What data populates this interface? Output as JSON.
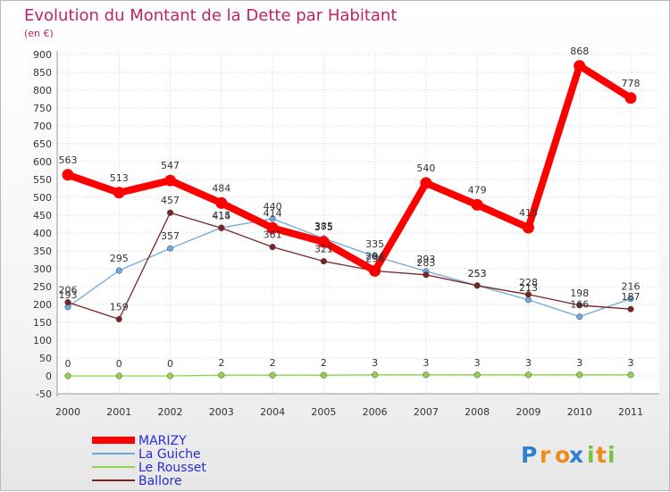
{
  "chart_data": {
    "type": "line",
    "title": "Evolution du Montant de la Dette par Habitant",
    "subtitle": "(en €)",
    "xlabel": "",
    "ylabel": "",
    "ylim": [
      -50,
      900
    ],
    "yticks": [
      -50,
      0,
      50,
      100,
      150,
      200,
      250,
      300,
      350,
      400,
      450,
      500,
      550,
      600,
      650,
      700,
      750,
      800,
      850,
      900
    ],
    "x": [
      "2000",
      "2001",
      "2002",
      "2003",
      "2004",
      "2005",
      "2006",
      "2007",
      "2008",
      "2009",
      "2010",
      "2011"
    ],
    "grid": true,
    "legend_position": "bottom-left",
    "series": [
      {
        "name": "MARIZY",
        "color": "#ff0000",
        "values": [
          563,
          513,
          547,
          484,
          414,
          375,
          294,
          540,
          479,
          415,
          868,
          778
        ]
      },
      {
        "name": "La Guiche",
        "color": "#6fa8dc",
        "values": [
          193,
          295,
          357,
          415,
          440,
          385,
          335,
          293,
          253,
          213,
          166,
          216
        ]
      },
      {
        "name": "Le Rousset",
        "color": "#8fd44b",
        "values": [
          0,
          0,
          0,
          2,
          2,
          2,
          3,
          3,
          3,
          3,
          3,
          3
        ]
      },
      {
        "name": "Ballore",
        "color": "#7a2424",
        "values": [
          206,
          159,
          457,
          414,
          361,
          321,
          294,
          283,
          253,
          228,
          198,
          187
        ]
      }
    ]
  },
  "logo": {
    "text": "Proxiti",
    "letters": [
      "P",
      "r",
      "o",
      "x",
      "i",
      "t",
      "i"
    ],
    "colors": [
      "#2f7fd4",
      "#f08a1c",
      "#f08a1c",
      "#2f7fd4",
      "#7cc242",
      "#f08a1c",
      "#7cc242"
    ]
  }
}
